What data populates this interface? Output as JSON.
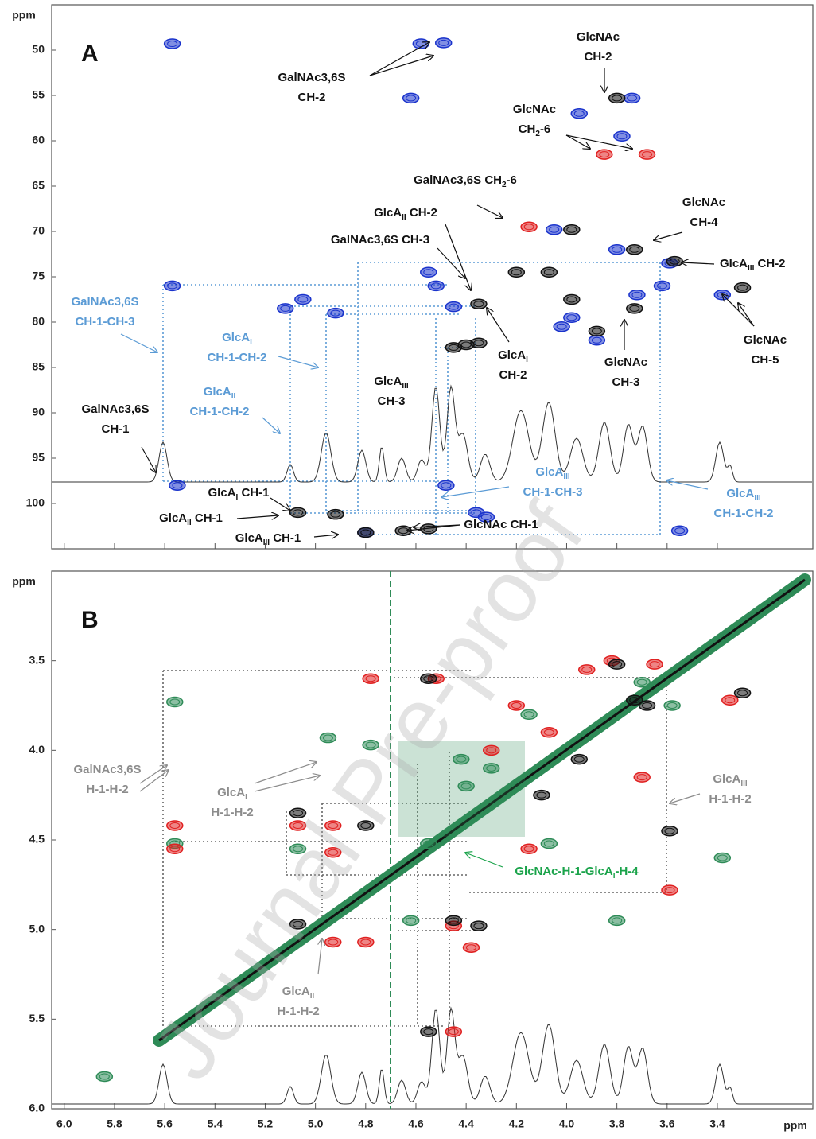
{
  "chart_data": [
    {
      "type": "scatter",
      "panel_label": "A",
      "y_label": "ppm",
      "xlim": [
        6.05,
        3.02
      ],
      "ylim": [
        45,
        105
      ],
      "xticks": [
        {
          "value": 6,
          "label": "6.0"
        },
        5.8,
        5.6,
        5.4,
        5.2,
        {
          "value": 5,
          "label": "5.0"
        },
        4.8,
        4.6,
        4.4,
        4.2,
        {
          "value": 4,
          "label": "4.0"
        },
        3.8,
        3.6,
        3.4
      ],
      "xtick_labels": false,
      "yticks": [
        50,
        55,
        60,
        65,
        70,
        75,
        80,
        85,
        90,
        95,
        100
      ],
      "peaks": [
        {
          "color": "#1a33cc",
          "x": [
            5.57,
            4.49,
            4.58,
            4.62,
            3.74,
            3.95,
            3.78,
            4.05,
            3.8,
            3.59,
            3.38,
            4.52,
            4.45,
            4.55,
            5.57,
            5.05,
            5.12,
            4.92,
            4.02,
            3.88,
            3.98,
            5.55,
            4.8,
            4.36,
            4.32,
            4.48,
            3.72,
            3.62,
            3.55
          ],
          "y": [
            49.3,
            49.2,
            49.3,
            55.3,
            55.3,
            57.0,
            59.5,
            69.8,
            72.0,
            73.5,
            77.0,
            76.0,
            78.3,
            74.5,
            76.0,
            77.5,
            78.5,
            79.0,
            80.5,
            82.0,
            79.5,
            98.0,
            103.2,
            101.0,
            101.5,
            98.0,
            77.0,
            76.0,
            103.0
          ]
        },
        {
          "color": "#111111",
          "x": [
            3.8,
            3.98,
            3.73,
            3.57,
            3.3,
            3.73,
            4.35,
            4.4,
            4.45,
            4.07,
            3.98,
            3.88,
            5.07,
            4.92,
            4.8,
            4.65,
            4.55,
            4.2,
            4.35
          ],
          "y": [
            55.3,
            69.8,
            72.0,
            73.3,
            76.2,
            78.5,
            78.0,
            82.5,
            82.8,
            74.5,
            77.5,
            81.0,
            101.0,
            101.2,
            103.2,
            103.0,
            102.8,
            74.5,
            82.3
          ]
        },
        {
          "color": "#e02020",
          "x": [
            3.85,
            3.68,
            4.15
          ],
          "y": [
            61.5,
            61.5,
            69.5
          ]
        }
      ],
      "annotations": [
        {
          "color": "#111111",
          "lines": [
            [
              {
                "t": "GalNAc3,6S"
              }
            ],
            [
              {
                "t": "CH-2"
              }
            ]
          ]
        },
        {
          "color": "#111111",
          "lines": [
            [
              {
                "t": "GlcNAc"
              }
            ],
            [
              {
                "t": "CH-2"
              }
            ]
          ]
        },
        {
          "color": "#111111",
          "lines": [
            [
              {
                "t": "GlcNAc"
              }
            ],
            [
              {
                "t": "CH"
              },
              {
                "sub": "2"
              },
              {
                "t": "-6"
              }
            ]
          ]
        },
        {
          "color": "#111111",
          "lines": [
            [
              {
                "t": "GalNAc3,6S CH"
              },
              {
                "sub": "2"
              },
              {
                "t": "-6"
              }
            ]
          ]
        },
        {
          "color": "#111111",
          "lines": [
            [
              {
                "t": "GlcA"
              },
              {
                "sub": "II"
              },
              {
                "t": " CH-2"
              }
            ]
          ]
        },
        {
          "color": "#111111",
          "lines": [
            [
              {
                "t": "GalNAc3,6S CH-3"
              }
            ]
          ]
        },
        {
          "color": "#111111",
          "lines": [
            [
              {
                "t": "GlcNAc"
              }
            ],
            [
              {
                "t": "CH-4"
              }
            ]
          ]
        },
        {
          "color": "#111111",
          "lines": [
            [
              {
                "t": "GlcA"
              },
              {
                "sub": "III"
              },
              {
                "t": " CH-2"
              }
            ]
          ]
        },
        {
          "color": "#5b9bd5",
          "lines": [
            [
              {
                "t": "GalNAc3,6S"
              }
            ],
            [
              {
                "t": "CH-1-CH-3"
              }
            ]
          ]
        },
        {
          "color": "#5b9bd5",
          "lines": [
            [
              {
                "t": "GlcA"
              },
              {
                "sub": "I"
              }
            ],
            [
              {
                "t": "CH-1-CH-2"
              }
            ]
          ]
        },
        {
          "color": "#5b9bd5",
          "lines": [
            [
              {
                "t": "GlcA"
              },
              {
                "sub": "II"
              }
            ],
            [
              {
                "t": "CH-1-CH-2"
              }
            ]
          ]
        },
        {
          "color": "#111111",
          "lines": [
            [
              {
                "t": "GlcA"
              },
              {
                "sub": "I"
              }
            ],
            [
              {
                "t": "CH-2"
              }
            ]
          ]
        },
        {
          "color": "#111111",
          "lines": [
            [
              {
                "t": "GlcNAc"
              }
            ],
            [
              {
                "t": "CH-3"
              }
            ]
          ]
        },
        {
          "color": "#111111",
          "lines": [
            [
              {
                "t": "GlcNAc"
              }
            ],
            [
              {
                "t": "CH-5"
              }
            ]
          ]
        },
        {
          "color": "#111111",
          "lines": [
            [
              {
                "t": "GlcA"
              },
              {
                "sub": "III"
              }
            ],
            [
              {
                "t": "CH-3"
              }
            ]
          ]
        },
        {
          "color": "#111111",
          "lines": [
            [
              {
                "t": "GalNAc3,6S"
              }
            ],
            [
              {
                "t": "CH-1"
              }
            ]
          ]
        },
        {
          "color": "#5b9bd5",
          "lines": [
            [
              {
                "t": "GlcA"
              },
              {
                "sub": "III"
              }
            ],
            [
              {
                "t": "CH-1-CH-3"
              }
            ]
          ]
        },
        {
          "color": "#5b9bd5",
          "lines": [
            [
              {
                "t": "GlcA"
              },
              {
                "sub": "III"
              }
            ],
            [
              {
                "t": "CH-1-CH-2"
              }
            ]
          ]
        },
        {
          "color": "#111111",
          "lines": [
            [
              {
                "t": "GlcA"
              },
              {
                "sub": "I"
              },
              {
                "t": " CH-1"
              }
            ]
          ]
        },
        {
          "color": "#111111",
          "lines": [
            [
              {
                "t": "GlcA"
              },
              {
                "sub": "II"
              },
              {
                "t": " CH-1"
              }
            ]
          ]
        },
        {
          "color": "#111111",
          "lines": [
            [
              {
                "t": "GlcA"
              },
              {
                "sub": "III"
              },
              {
                "t": " CH-1"
              }
            ]
          ]
        },
        {
          "color": "#111111",
          "lines": [
            [
              {
                "t": "GlcNAc CH-1"
              }
            ]
          ]
        }
      ]
    },
    {
      "type": "scatter",
      "panel_label": "B",
      "x_label": "ppm",
      "y_label": "ppm",
      "xlim": [
        6.05,
        3.02
      ],
      "ylim": [
        3.0,
        6.0
      ],
      "xticks": [
        {
          "value": 6,
          "label": "6.0"
        },
        5.8,
        5.6,
        5.4,
        5.2,
        {
          "value": 5,
          "label": "5.0"
        },
        4.8,
        4.6,
        4.4,
        4.2,
        {
          "value": 4,
          "label": "4.0"
        },
        3.8,
        3.6,
        3.4
      ],
      "xtick_labels": true,
      "yticks": [
        3.5,
        {
          "value": 4,
          "label": "4.0"
        },
        4.5,
        {
          "value": 5,
          "label": "5.0"
        },
        5.5,
        {
          "value": 6,
          "label": "6.0"
        }
      ],
      "peaks": [
        {
          "color": "#2e8b57",
          "x": [
            5.56,
            5.56,
            5.07,
            4.42,
            4.4,
            4.3,
            4.15,
            4.07,
            4.55,
            3.38,
            3.7,
            3.8,
            4.95,
            4.78,
            5.84,
            3.58,
            4.62
          ],
          "y": [
            3.73,
            4.52,
            4.55,
            4.05,
            4.2,
            4.1,
            3.8,
            4.52,
            4.52,
            4.6,
            3.62,
            4.95,
            3.93,
            3.97,
            5.82,
            3.75,
            4.95
          ]
        },
        {
          "color": "#e02020",
          "x": [
            5.56,
            5.56,
            4.93,
            4.93,
            4.8,
            4.93,
            4.78,
            4.45,
            4.45,
            3.82,
            4.2,
            4.07,
            3.59,
            3.35,
            3.7,
            4.3,
            4.15,
            3.92,
            3.65,
            5.07,
            4.52,
            4.38
          ],
          "y": [
            4.42,
            4.55,
            4.57,
            4.42,
            5.07,
            5.07,
            3.6,
            5.57,
            4.98,
            3.5,
            3.75,
            3.9,
            4.78,
            3.72,
            4.15,
            4.0,
            4.55,
            3.55,
            3.52,
            4.42,
            3.6,
            5.1
          ]
        },
        {
          "color": "#111111",
          "x": [
            4.8,
            4.55,
            3.73,
            3.3,
            3.59,
            5.07,
            5.07,
            4.35,
            4.45,
            4.55,
            3.8,
            3.68,
            4.1,
            3.95
          ],
          "y": [
            4.42,
            3.6,
            3.72,
            3.68,
            4.45,
            4.35,
            4.97,
            4.98,
            4.95,
            5.57,
            3.52,
            3.75,
            4.25,
            4.05
          ]
        }
      ],
      "annotations": [
        {
          "color": "#8c8c8c",
          "lines": [
            [
              {
                "t": "GalNAc3,6S"
              }
            ],
            [
              {
                "t": "H-1-H-2"
              }
            ]
          ]
        },
        {
          "color": "#8c8c8c",
          "lines": [
            [
              {
                "t": "GlcA"
              },
              {
                "sub": "I"
              }
            ],
            [
              {
                "t": "H-1-H-2"
              }
            ]
          ]
        },
        {
          "color": "#8c8c8c",
          "lines": [
            [
              {
                "t": "GlcA"
              },
              {
                "sub": "II"
              }
            ],
            [
              {
                "t": "H-1-H-2"
              }
            ]
          ]
        },
        {
          "color": "#8c8c8c",
          "lines": [
            [
              {
                "t": "GlcA"
              },
              {
                "sub": "III"
              }
            ],
            [
              {
                "t": "H-1-H-2"
              }
            ]
          ]
        },
        {
          "color": "#1aa34a",
          "lines": [
            [
              {
                "t": "GlcNAc-H-1-GlcA"
              },
              {
                "sub": "I"
              },
              {
                "t": "-H-4"
              }
            ]
          ]
        }
      ]
    }
  ],
  "watermark": "Journal Pre-proof"
}
